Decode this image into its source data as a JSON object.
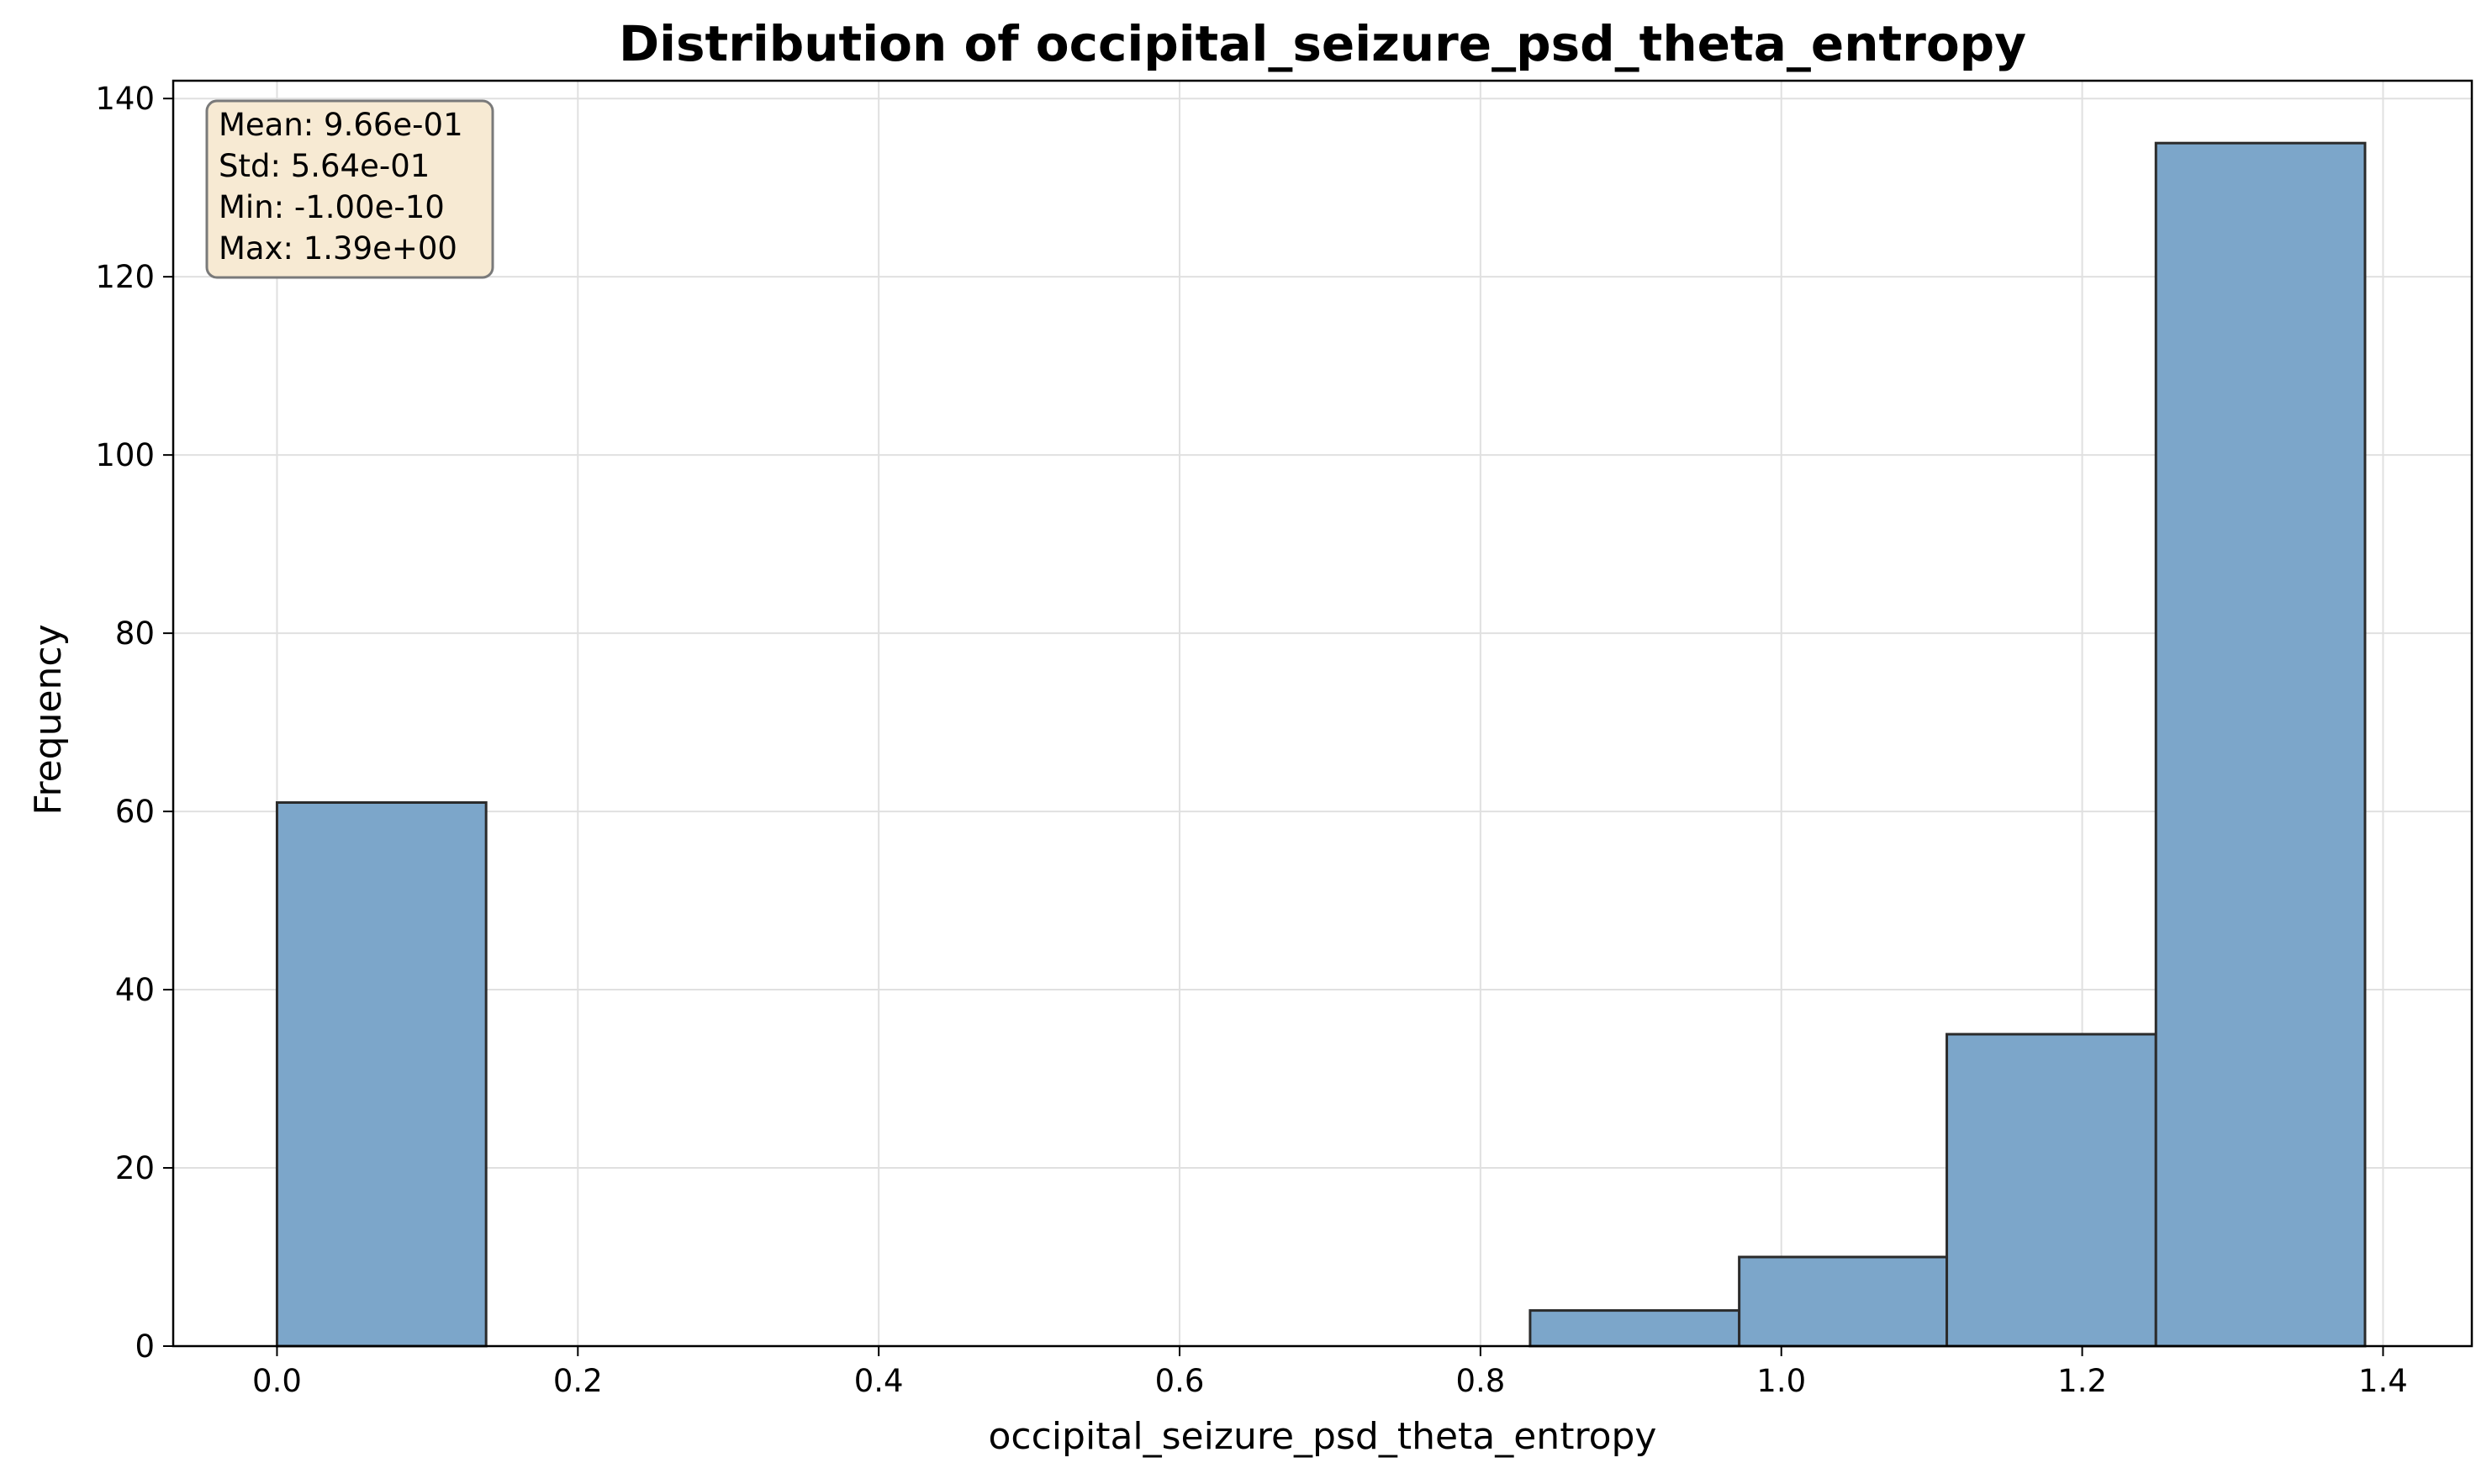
{
  "chart_data": {
    "type": "bar",
    "title": "Distribution of occipital_seizure_psd_theta_entropy",
    "xlabel": "occipital_seizure_psd_theta_entropy",
    "ylabel": "Frequency",
    "xlim": [
      -0.069,
      1.459
    ],
    "ylim": [
      0,
      142
    ],
    "xticks": [
      0.0,
      0.2,
      0.4,
      0.6,
      0.8,
      1.0,
      1.2,
      1.4
    ],
    "xtick_labels": [
      "0.0",
      "0.2",
      "0.4",
      "0.6",
      "0.8",
      "1.0",
      "1.2",
      "1.4"
    ],
    "yticks": [
      0,
      20,
      40,
      60,
      80,
      100,
      120,
      140
    ],
    "ytick_labels": [
      "0",
      "20",
      "40",
      "60",
      "80",
      "100",
      "120",
      "140"
    ],
    "grid": true,
    "bins": [
      {
        "x0": 0.0,
        "x1": 0.139,
        "count": 61
      },
      {
        "x0": 0.139,
        "x1": 0.278,
        "count": 0
      },
      {
        "x0": 0.278,
        "x1": 0.416,
        "count": 0
      },
      {
        "x0": 0.416,
        "x1": 0.555,
        "count": 0
      },
      {
        "x0": 0.555,
        "x1": 0.694,
        "count": 0
      },
      {
        "x0": 0.694,
        "x1": 0.833,
        "count": 0
      },
      {
        "x0": 0.833,
        "x1": 0.972,
        "count": 4
      },
      {
        "x0": 0.972,
        "x1": 1.11,
        "count": 10
      },
      {
        "x0": 1.11,
        "x1": 1.249,
        "count": 35
      },
      {
        "x0": 1.249,
        "x1": 1.388,
        "count": 135
      }
    ],
    "bar_color": "#7ca6ca",
    "bar_edge_color": "#2b2b2b",
    "stats_box": {
      "placement": "top-left",
      "lines": [
        "Mean: 9.66e-01",
        "Std: 5.64e-01",
        "Min: -1.00e-10",
        "Max: 1.39e+00"
      ],
      "background": "#f7ead3",
      "border": "#7a7a7a"
    }
  }
}
